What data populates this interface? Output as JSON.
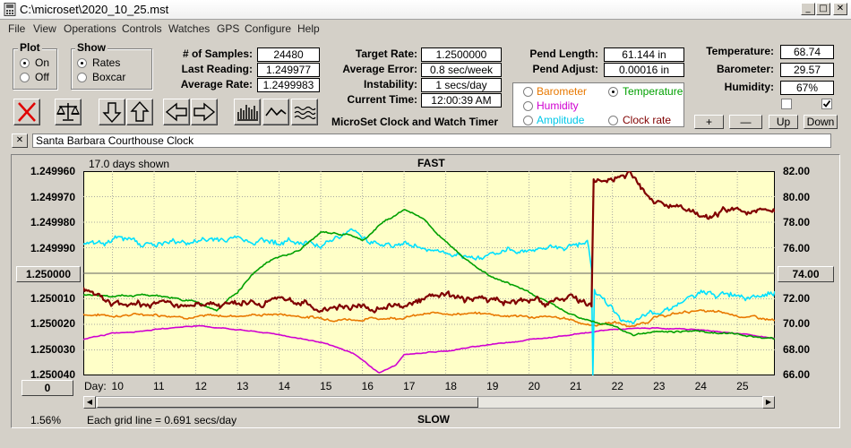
{
  "window": {
    "title": "C:\\microset\\2020_10_25.mst",
    "minimize": "_",
    "restore": "□",
    "close": "✕"
  },
  "menu": [
    "File",
    "View",
    "Operations",
    "Controls",
    "Watches",
    "GPS",
    "Configure",
    "Help"
  ],
  "plot_group": {
    "title": "Plot",
    "on": "On",
    "off": "Off",
    "selected": "On"
  },
  "show_group": {
    "title": "Show",
    "rates": "Rates",
    "boxcar": "Boxcar",
    "selected": "Rates"
  },
  "stats": {
    "samples_label": "# of Samples:",
    "samples": "24480",
    "last_label": "Last Reading:",
    "last": "1.249977",
    "avg_label": "Average Rate:",
    "avg": "1.2499983"
  },
  "targets": {
    "target_label": "Target Rate:",
    "target": "1.2500000",
    "error_label": "Average Error:",
    "error": "0.8 sec/week",
    "instab_label": "Instability:",
    "instab": "1 secs/day",
    "time_label": "Current Time:",
    "time": "12:00:39 AM",
    "app_name": "MicroSet Clock and Watch Timer"
  },
  "pendulum": {
    "length_label": "Pend Length:",
    "length": "61.144 in",
    "adjust_label": "Pend Adjust:",
    "adjust": "0.00016 in"
  },
  "sensor_options": [
    {
      "label": "Barometer",
      "color": "#e87800",
      "selected": false
    },
    {
      "label": "Temperature",
      "color": "#00a000",
      "selected": true
    },
    {
      "label": "Humidity",
      "color": "#d000d0",
      "selected": false
    },
    {
      "label": "Amplitude",
      "color": "#00c8e8",
      "selected": false
    },
    {
      "label": "Clock rate",
      "color": "#800000",
      "selected": false
    }
  ],
  "env": {
    "temp_label": "Temperature:",
    "temp": "68.74",
    "baro_label": "Barometer:",
    "baro": "29.57",
    "hum_label": "Humidity:",
    "hum": "67%",
    "check1": false,
    "check2": true
  },
  "scale_buttons": {
    "plus": "+",
    "minus": "—",
    "up": "Up",
    "down": "Down"
  },
  "clock_name": "Santa Barbara Courthouse Clock",
  "name_clear": "✕",
  "chart": {
    "days_shown": "17.0 days shown",
    "top_label": "FAST",
    "bottom_label": "SLOW",
    "grid_note": "Each grid line = 0.691 secs/day",
    "percent": "1.56%",
    "day_label": "Day:",
    "left_center_button": "1.250000",
    "right_center_button": "74.00",
    "left_bottom_button": "0",
    "colors": {
      "background": "#ffffc8",
      "clock": "#800000",
      "temperature": "#00a000",
      "barometer": "#e87800",
      "humidity": "#d000d0",
      "amplitude": "#00e0ff"
    }
  },
  "chart_data": {
    "type": "line",
    "x_label": "Day",
    "xlim": [
      9.3,
      25.9
    ],
    "x_ticks": [
      10,
      11,
      12,
      13,
      14,
      15,
      16,
      17,
      18,
      19,
      20,
      21,
      22,
      23,
      24,
      25
    ],
    "y_left_ticks": [
      "1.249960",
      "1.249970",
      "1.249980",
      "1.249990",
      "1.250000",
      "1.250010",
      "1.250020",
      "1.250030",
      "1.250040"
    ],
    "y_left_range": [
      1.24996,
      1.25004
    ],
    "y_right_ticks": [
      "82.00",
      "80.00",
      "78.00",
      "76.00",
      "74.00",
      "72.00",
      "70.00",
      "68.00",
      "66.00"
    ],
    "y_right_range": [
      66,
      82
    ],
    "grid": true,
    "series": [
      {
        "name": "Clock rate",
        "axis": "left",
        "noise": 1.8e-06,
        "points": [
          [
            9.3,
            1.250006
          ],
          [
            10,
            1.250012
          ],
          [
            11,
            1.250012
          ],
          [
            12,
            1.250013
          ],
          [
            13,
            1.250012
          ],
          [
            14,
            1.25001
          ],
          [
            15,
            1.250014
          ],
          [
            16,
            1.250012
          ],
          [
            17,
            1.250013
          ],
          [
            18,
            1.250008
          ],
          [
            19,
            1.250011
          ],
          [
            20,
            1.250012
          ],
          [
            21,
            1.25001
          ],
          [
            21.5,
            1.250013
          ],
          [
            21.55,
            1.249964
          ],
          [
            22,
            1.249962
          ],
          [
            22.4,
            1.24996
          ],
          [
            23,
            1.249973
          ],
          [
            24,
            1.249978
          ],
          [
            24.5,
            1.249977
          ],
          [
            25,
            1.249975
          ],
          [
            25.9,
            1.249976
          ]
        ]
      },
      {
        "name": "Temperature",
        "axis": "right",
        "noise": 0.1,
        "points": [
          [
            9.3,
            72.3
          ],
          [
            10,
            72.2
          ],
          [
            11,
            72.3
          ],
          [
            12,
            71.8
          ],
          [
            12.5,
            71.1
          ],
          [
            13,
            72.6
          ],
          [
            13.4,
            74.0
          ],
          [
            13.8,
            75.0
          ],
          [
            14.5,
            75.8
          ],
          [
            15,
            77.2
          ],
          [
            15.7,
            77.0
          ],
          [
            16,
            76.5
          ],
          [
            16.5,
            78.0
          ],
          [
            17,
            79.0
          ],
          [
            17.5,
            78.2
          ],
          [
            18,
            76.4
          ],
          [
            18.5,
            75.2
          ],
          [
            19,
            74.0
          ],
          [
            20,
            72.5
          ],
          [
            21,
            70.8
          ],
          [
            21.5,
            70.2
          ],
          [
            22,
            69.9
          ],
          [
            22.5,
            69.2
          ],
          [
            23,
            69.4
          ],
          [
            24,
            69.5
          ],
          [
            25,
            69.2
          ],
          [
            25.9,
            68.9
          ]
        ]
      },
      {
        "name": "Barometer",
        "axis": "right",
        "noise": 0.15,
        "points": [
          [
            9.3,
            70.8
          ],
          [
            10,
            70.7
          ],
          [
            11,
            70.8
          ],
          [
            12,
            70.6
          ],
          [
            13,
            70.7
          ],
          [
            14,
            70.8
          ],
          [
            15,
            70.5
          ],
          [
            16,
            70.4
          ],
          [
            17,
            70.6
          ],
          [
            18,
            70.9
          ],
          [
            19,
            70.8
          ],
          [
            20,
            70.6
          ],
          [
            21,
            70.4
          ],
          [
            21.5,
            69.9
          ],
          [
            22,
            70.2
          ],
          [
            22.5,
            69.8
          ],
          [
            23,
            70.5
          ],
          [
            24,
            71.1
          ],
          [
            25,
            70.7
          ],
          [
            25.9,
            70.3
          ]
        ]
      },
      {
        "name": "Humidity",
        "axis": "right",
        "noise": 0.05,
        "points": [
          [
            9.3,
            68.8
          ],
          [
            10,
            69.3
          ],
          [
            11,
            69.6
          ],
          [
            12,
            69.9
          ],
          [
            13,
            69.6
          ],
          [
            14,
            69.2
          ],
          [
            15,
            68.6
          ],
          [
            15.8,
            67.7
          ],
          [
            16.4,
            66.2
          ],
          [
            16.8,
            66.8
          ],
          [
            17,
            67.6
          ],
          [
            17.5,
            67.8
          ],
          [
            18,
            67.9
          ],
          [
            19,
            68.4
          ],
          [
            20,
            68.8
          ],
          [
            21,
            69.2
          ],
          [
            22,
            69.6
          ],
          [
            23,
            69.7
          ],
          [
            24,
            69.6
          ],
          [
            25,
            69.3
          ],
          [
            25.9,
            68.9
          ]
        ]
      },
      {
        "name": "Amplitude",
        "axis": "right",
        "noise": 0.35,
        "points": [
          [
            9.3,
            76.4
          ],
          [
            10,
            76.7
          ],
          [
            11,
            76.3
          ],
          [
            12,
            76.5
          ],
          [
            13,
            76.8
          ],
          [
            14,
            76.5
          ],
          [
            15,
            76.4
          ],
          [
            15.8,
            77.3
          ],
          [
            16.5,
            76.2
          ],
          [
            17,
            76.3
          ],
          [
            18,
            75.6
          ],
          [
            18.5,
            74.8
          ],
          [
            19,
            75.6
          ],
          [
            20,
            75.9
          ],
          [
            21,
            76.2
          ],
          [
            21.4,
            76.8
          ],
          [
            21.5,
            74.3
          ],
          [
            21.53,
            65.8
          ],
          [
            21.57,
            72.6
          ],
          [
            22,
            71.2
          ],
          [
            22.5,
            69.8
          ],
          [
            23,
            71.0
          ],
          [
            24,
            72.2
          ],
          [
            25,
            72.4
          ],
          [
            25.9,
            72.6
          ]
        ]
      }
    ]
  }
}
